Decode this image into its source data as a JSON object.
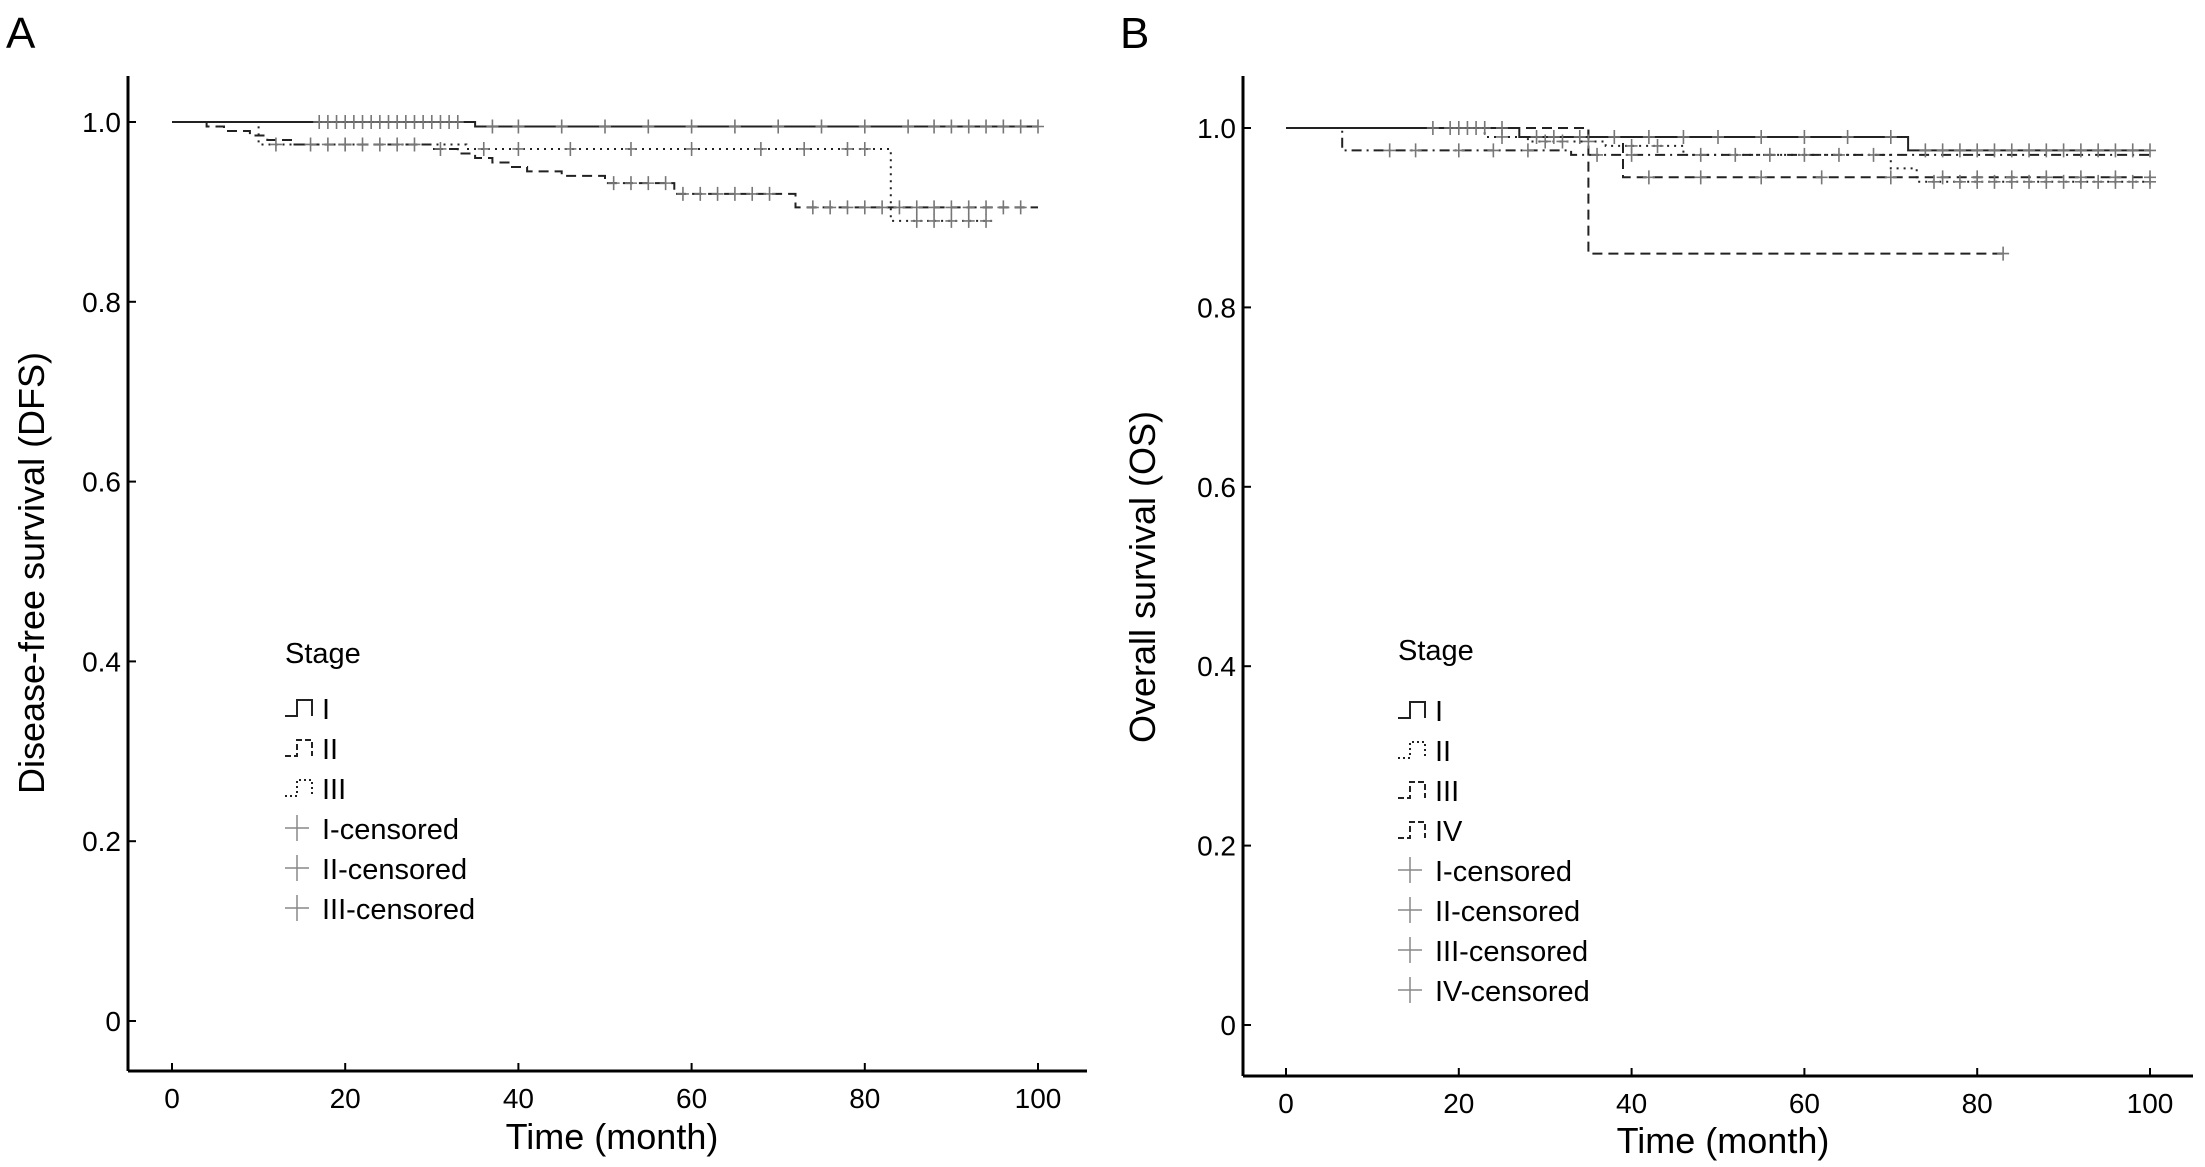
{
  "chart_data": [
    {
      "panel": "A",
      "type": "line",
      "xlabel": "Time (month)",
      "ylabel": "Disease-free survival (DFS)",
      "xlim": [
        -5.5,
        105
      ],
      "ylim": [
        -0.055,
        1.05
      ],
      "xticks": [
        0,
        20,
        40,
        60,
        80,
        100
      ],
      "xtick_labels": [
        "0",
        "20",
        "40",
        "60",
        "80",
        "100"
      ],
      "yticks": [
        0,
        0.2,
        0.4,
        0.6,
        0.8,
        1.0
      ],
      "ytick_labels": [
        "0",
        "0.2",
        "0.4",
        "0.6",
        "0.8",
        "1.0"
      ],
      "legend": {
        "title": "Stage",
        "entries": [
          "I",
          "II",
          "III",
          "I-censored",
          "II-censored",
          "III-censored"
        ],
        "placement": "lower-left"
      },
      "series": [
        {
          "name": "I",
          "style": "solid",
          "steps": [
            [
              0,
              1.0
            ],
            [
              35,
              1.0
            ],
            [
              35,
              0.995
            ],
            [
              100,
              0.995
            ]
          ],
          "censored": [
            17,
            18,
            19,
            20,
            21,
            22,
            23,
            24,
            25,
            26,
            27,
            28,
            29,
            30,
            31,
            32,
            33,
            37,
            40,
            45,
            50,
            55,
            60,
            65,
            70,
            75,
            80,
            85,
            88,
            90,
            92,
            94,
            96,
            98,
            100
          ]
        },
        {
          "name": "II",
          "style": "dashed",
          "steps": [
            [
              0,
              1.0
            ],
            [
              4,
              1.0
            ],
            [
              4,
              0.995
            ],
            [
              6,
              0.995
            ],
            [
              6,
              0.99
            ],
            [
              9,
              0.99
            ],
            [
              9,
              0.985
            ],
            [
              11,
              0.985
            ],
            [
              11,
              0.98
            ],
            [
              14,
              0.98
            ],
            [
              14,
              0.975
            ],
            [
              30,
              0.975
            ],
            [
              30,
              0.97
            ],
            [
              33,
              0.97
            ],
            [
              33,
              0.965
            ],
            [
              35,
              0.965
            ],
            [
              35,
              0.96
            ],
            [
              37,
              0.96
            ],
            [
              37,
              0.955
            ],
            [
              39,
              0.955
            ],
            [
              39,
              0.95
            ],
            [
              41,
              0.95
            ],
            [
              41,
              0.945
            ],
            [
              45,
              0.945
            ],
            [
              45,
              0.94
            ],
            [
              50,
              0.94
            ],
            [
              50,
              0.932
            ],
            [
              58,
              0.932
            ],
            [
              58,
              0.92
            ],
            [
              72,
              0.92
            ],
            [
              72,
              0.905
            ],
            [
              100,
              0.905
            ]
          ],
          "censored": [
            18,
            20,
            22,
            24,
            26,
            28,
            31,
            51,
            53,
            55,
            57,
            59,
            61,
            63,
            65,
            67,
            69,
            74,
            76,
            78,
            80,
            82,
            84,
            86,
            88,
            90,
            92,
            94,
            96,
            98
          ]
        },
        {
          "name": "III",
          "style": "dotted",
          "steps": [
            [
              0,
              1.0
            ],
            [
              10,
              1.0
            ],
            [
              10,
              0.975
            ],
            [
              34,
              0.975
            ],
            [
              34,
              0.97
            ],
            [
              83,
              0.97
            ],
            [
              83,
              0.89
            ],
            [
              95,
              0.89
            ]
          ],
          "censored": [
            12,
            16,
            20,
            36,
            40,
            46,
            53,
            60,
            68,
            73,
            78,
            80,
            86,
            88,
            90,
            92,
            94
          ]
        }
      ]
    },
    {
      "panel": "B",
      "type": "line",
      "xlabel": "Time (month)",
      "ylabel": "Overall survival (OS)",
      "xlim": [
        -5.5,
        104
      ],
      "ylim": [
        -0.055,
        1.05
      ],
      "xticks": [
        0,
        20,
        40,
        60,
        80,
        100
      ],
      "xtick_labels": [
        "0",
        "20",
        "40",
        "60",
        "80",
        "100"
      ],
      "yticks": [
        0,
        0.2,
        0.4,
        0.6,
        0.8,
        1.0
      ],
      "ytick_labels": [
        "0",
        "0.2",
        "0.4",
        "0.6",
        "0.8",
        "1.0"
      ],
      "legend": {
        "title": "Stage",
        "entries": [
          "I",
          "II",
          "III",
          "IV",
          "I-censored",
          "II-censored",
          "III-censored",
          "IV-censored"
        ],
        "placement": "lower-left"
      },
      "series": [
        {
          "name": "I",
          "style": "solid",
          "steps": [
            [
              0,
              1.0
            ],
            [
              27,
              1.0
            ],
            [
              27,
              0.99
            ],
            [
              72,
              0.99
            ],
            [
              72,
              0.975
            ],
            [
              100,
              0.975
            ]
          ],
          "censored": [
            17,
            19,
            21,
            23,
            25,
            29,
            31,
            34,
            38,
            42,
            46,
            50,
            55,
            60,
            65,
            70,
            74,
            76,
            78,
            80,
            82,
            84,
            86,
            88,
            90,
            92,
            94,
            96,
            98,
            100
          ]
        },
        {
          "name": "II",
          "style": "dotted",
          "steps": [
            [
              0,
              1.0
            ],
            [
              23,
              1.0
            ],
            [
              23,
              0.99
            ],
            [
              28,
              0.99
            ],
            [
              28,
              0.985
            ],
            [
              37,
              0.985
            ],
            [
              37,
              0.98
            ],
            [
              46,
              0.98
            ],
            [
              46,
              0.97
            ],
            [
              70,
              0.97
            ],
            [
              70,
              0.955
            ],
            [
              73,
              0.955
            ],
            [
              73,
              0.94
            ],
            [
              100,
              0.94
            ]
          ],
          "censored": [
            20,
            22,
            25,
            30,
            32,
            35,
            40,
            43,
            48,
            52,
            56,
            60,
            64,
            68,
            75,
            78,
            80,
            82,
            84,
            86,
            88,
            90,
            92,
            94,
            96,
            98,
            100
          ]
        },
        {
          "name": "III",
          "style": "dashdot",
          "steps": [
            [
              0,
              1.0
            ],
            [
              6.5,
              1.0
            ],
            [
              6.5,
              0.975
            ],
            [
              33,
              0.975
            ],
            [
              33,
              0.97
            ],
            [
              100,
              0.97
            ]
          ],
          "censored": [
            12,
            15,
            20,
            24,
            28,
            36,
            40
          ]
        },
        {
          "name": "IV",
          "style": "dashed",
          "steps": [
            [
              0,
              1.0
            ],
            [
              35,
              1.0
            ],
            [
              35,
              0.86
            ],
            [
              83,
              0.86
            ]
          ],
          "censored": [
            83
          ]
        },
        {
          "name": "",
          "style": "dashed",
          "steps": [
            [
              0,
              1.0
            ],
            [
              35,
              1.0
            ],
            [
              35,
              0.99
            ],
            [
              39,
              0.99
            ],
            [
              39,
              0.945
            ],
            [
              100,
              0.945
            ]
          ],
          "censored": [
            42,
            48,
            55,
            62,
            70,
            76,
            80,
            84,
            88,
            92,
            96,
            100
          ]
        }
      ]
    }
  ]
}
